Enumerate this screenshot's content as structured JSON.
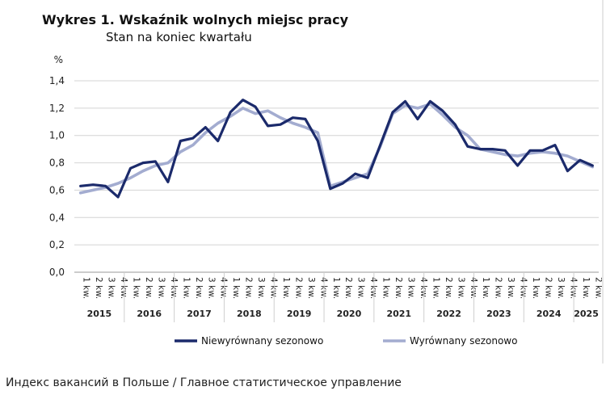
{
  "caption": "Индекс вакансий в Польше / Главное статистическое управление",
  "chart_data": {
    "type": "line",
    "title": "Wykres 1. Wskaźnik wolnych miejsc pracy",
    "subtitle": "Stan na koniec kwartału",
    "ylabel": "%",
    "xlabel": "",
    "ylim": [
      0,
      1.4
    ],
    "y_ticks": [
      "0,0",
      "0,2",
      "0,4",
      "0,6",
      "0,8",
      "1,0",
      "1,2",
      "1,4"
    ],
    "grid": true,
    "legend_position": "bottom",
    "quarter_labels": [
      "1 kw.",
      "2 kw.",
      "3 kw.",
      "4 kw."
    ],
    "years": [
      "2015",
      "2016",
      "2017",
      "2018",
      "2019",
      "2020",
      "2021",
      "2022",
      "2023",
      "2024",
      "2025"
    ],
    "categories": [
      "2015 Q1",
      "2015 Q2",
      "2015 Q3",
      "2015 Q4",
      "2016 Q1",
      "2016 Q2",
      "2016 Q3",
      "2016 Q4",
      "2017 Q1",
      "2017 Q2",
      "2017 Q3",
      "2017 Q4",
      "2018 Q1",
      "2018 Q2",
      "2018 Q3",
      "2018 Q4",
      "2019 Q1",
      "2019 Q2",
      "2019 Q3",
      "2019 Q4",
      "2020 Q1",
      "2020 Q2",
      "2020 Q3",
      "2020 Q4",
      "2021 Q1",
      "2021 Q2",
      "2021 Q3",
      "2021 Q4",
      "2022 Q1",
      "2022 Q2",
      "2022 Q3",
      "2022 Q4",
      "2023 Q1",
      "2023 Q2",
      "2023 Q3",
      "2023 Q4",
      "2024 Q1",
      "2024 Q2",
      "2024 Q3",
      "2024 Q4",
      "2025 Q1",
      "2025 Q2"
    ],
    "series": [
      {
        "name": "Niewyrównany sezonowo",
        "color": "#1b2a6b",
        "values": [
          0.63,
          0.64,
          0.63,
          0.55,
          0.76,
          0.8,
          0.81,
          0.66,
          0.96,
          0.98,
          1.06,
          0.96,
          1.17,
          1.26,
          1.21,
          1.07,
          1.08,
          1.13,
          1.12,
          0.96,
          0.61,
          0.65,
          0.72,
          0.69,
          0.93,
          1.17,
          1.25,
          1.12,
          1.25,
          1.18,
          1.08,
          0.92,
          0.9,
          0.9,
          0.89,
          0.78,
          0.89,
          0.89,
          0.93,
          0.74,
          0.82,
          0.78
        ]
      },
      {
        "name": "Wyrównany sezonowo",
        "color": "#a3acd0",
        "values": [
          0.58,
          0.6,
          0.62,
          0.65,
          0.69,
          0.74,
          0.78,
          0.8,
          0.88,
          0.93,
          1.02,
          1.09,
          1.14,
          1.2,
          1.16,
          1.18,
          1.13,
          1.09,
          1.06,
          1.02,
          0.63,
          0.66,
          0.69,
          0.72,
          0.92,
          1.16,
          1.22,
          1.2,
          1.23,
          1.15,
          1.06,
          1.0,
          0.9,
          0.88,
          0.86,
          0.85,
          0.87,
          0.88,
          0.87,
          0.85,
          0.81,
          0.77
        ]
      }
    ]
  }
}
